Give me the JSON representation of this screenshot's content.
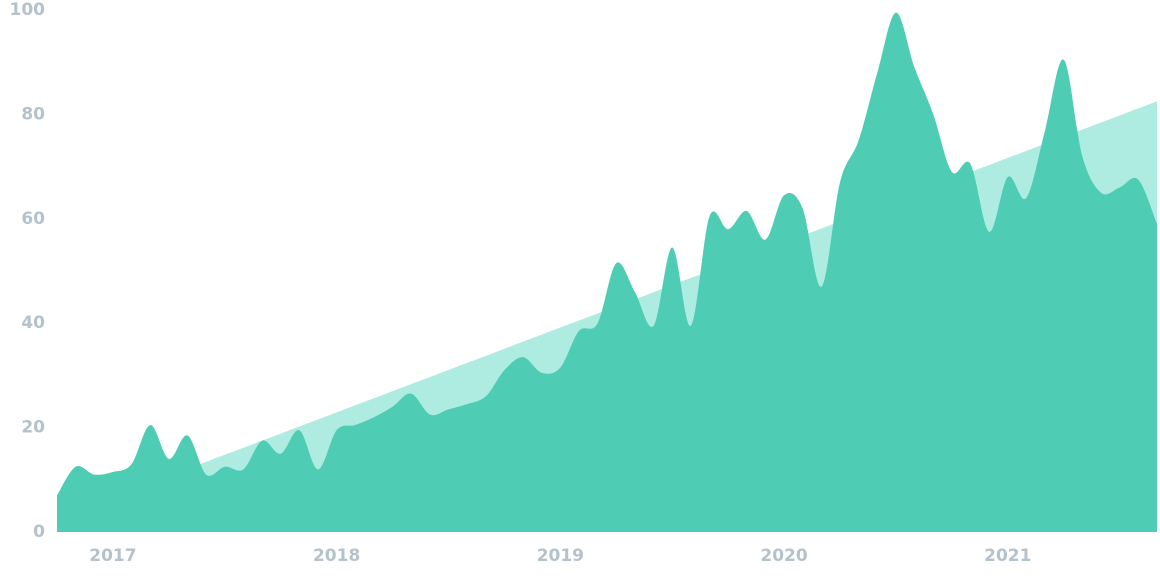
{
  "chart_data": {
    "type": "area",
    "x": [
      2016.75,
      2016.833,
      2016.917,
      2017,
      2017.083,
      2017.167,
      2017.25,
      2017.333,
      2017.417,
      2017.5,
      2017.583,
      2017.667,
      2017.75,
      2017.833,
      2017.917,
      2018,
      2018.083,
      2018.167,
      2018.25,
      2018.333,
      2018.417,
      2018.5,
      2018.583,
      2018.667,
      2018.75,
      2018.833,
      2018.917,
      2019,
      2019.083,
      2019.167,
      2019.25,
      2019.333,
      2019.417,
      2019.5,
      2019.583,
      2019.667,
      2019.75,
      2019.833,
      2019.917,
      2020,
      2020.083,
      2020.167,
      2020.25,
      2020.333,
      2020.417,
      2020.5,
      2020.583,
      2020.667,
      2020.75,
      2020.833,
      2020.917,
      2021,
      2021.083,
      2021.167,
      2021.25,
      2021.333,
      2021.417,
      2021.5,
      2021.583,
      2021.667
    ],
    "series": [
      {
        "color": "#aeece2",
        "values": [
          2.6,
          3.95,
          5.31,
          6.66,
          8.02,
          9.37,
          10.73,
          12.08,
          13.43,
          14.79,
          16.14,
          17.5,
          18.85,
          20.21,
          21.56,
          22.91,
          24.27,
          25.62,
          26.98,
          28.33,
          29.69,
          31.04,
          32.39,
          33.75,
          35.1,
          36.46,
          37.81,
          39.17,
          40.52,
          41.87,
          43.23,
          44.58,
          45.94,
          47.29,
          48.65,
          50.0,
          51.35,
          52.71,
          54.06,
          55.42,
          56.77,
          58.13,
          59.48,
          60.83,
          62.19,
          63.54,
          64.9,
          66.25,
          67.61,
          68.96,
          70.31,
          71.67,
          73.02,
          74.38,
          75.73,
          77.09,
          78.44,
          79.79,
          81.15,
          82.5
        ]
      },
      {
        "color": "#4ecdb4",
        "values": [
          7,
          12.5,
          11,
          11.5,
          13,
          20.5,
          14,
          18.5,
          11,
          12.5,
          12,
          17.5,
          15,
          19.5,
          12,
          19.5,
          20.5,
          22,
          24,
          26.5,
          22.5,
          23.5,
          24.5,
          26,
          31,
          33.5,
          30.5,
          31.5,
          38.5,
          40,
          51.5,
          46,
          39.5,
          54.5,
          39.5,
          60.5,
          58,
          61.5,
          56,
          64.5,
          62,
          47,
          67,
          75,
          88,
          99.5,
          89,
          80,
          69,
          70.5,
          57.5,
          68,
          64,
          77,
          90.5,
          72,
          65,
          66,
          67.5,
          59
        ]
      }
    ],
    "xlim": [
      2016.75,
      2021.667
    ],
    "xticks": [
      2017,
      2018,
      2019,
      2020,
      2021
    ],
    "ylim": [
      0,
      100
    ],
    "yticks": [
      0,
      20,
      40,
      60,
      80,
      100
    ],
    "grid": false
  }
}
